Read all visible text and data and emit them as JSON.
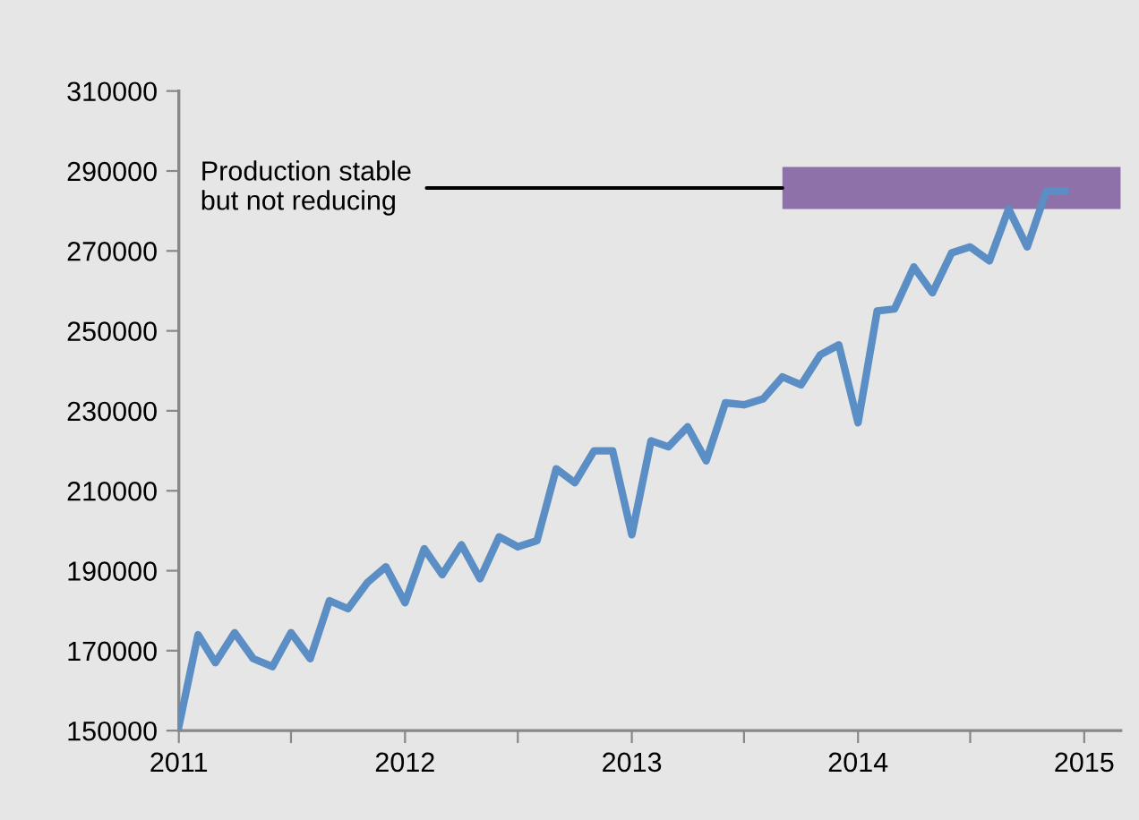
{
  "chart_data": {
    "type": "line",
    "x": [
      "2011-01",
      "2011-02",
      "2011-03",
      "2011-04",
      "2011-05",
      "2011-06",
      "2011-07",
      "2011-08",
      "2011-09",
      "2011-10",
      "2011-11",
      "2011-12",
      "2012-01",
      "2012-02",
      "2012-03",
      "2012-04",
      "2012-05",
      "2012-06",
      "2012-07",
      "2012-08",
      "2012-09",
      "2012-10",
      "2012-11",
      "2012-12",
      "2013-01",
      "2013-02",
      "2013-03",
      "2013-04",
      "2013-05",
      "2013-06",
      "2013-07",
      "2013-08",
      "2013-09",
      "2013-10",
      "2013-11",
      "2013-12",
      "2014-01",
      "2014-02",
      "2014-03",
      "2014-04",
      "2014-05",
      "2014-06",
      "2014-07",
      "2014-08",
      "2014-09",
      "2014-10",
      "2014-11",
      "2014-12"
    ],
    "series": [
      {
        "color": "#5b8ec4",
        "values": [
          151000,
          174000,
          167000,
          174500,
          168000,
          166000,
          174500,
          168000,
          182500,
          180500,
          187000,
          191000,
          182000,
          195500,
          189000,
          196500,
          188000,
          198500,
          196000,
          197500,
          215500,
          212000,
          220000,
          220000,
          199000,
          222500,
          221000,
          226000,
          217500,
          232000,
          231500,
          233000,
          238500,
          236500,
          244000,
          246500,
          227000,
          255000,
          255500,
          266000,
          259500,
          269500,
          271000,
          267500,
          280500,
          271000,
          285000,
          285000
        ]
      }
    ],
    "xlim": [
      "2011-01",
      "2015-03"
    ],
    "xticks": [
      {
        "value": "2011-01",
        "label": "2011"
      },
      {
        "value": "2011-07",
        "label": null
      },
      {
        "value": "2012-01",
        "label": "2012"
      },
      {
        "value": "2012-07",
        "label": null
      },
      {
        "value": "2013-01",
        "label": "2013"
      },
      {
        "value": "2013-07",
        "label": null
      },
      {
        "value": "2014-01",
        "label": "2014"
      },
      {
        "value": "2014-07",
        "label": null
      },
      {
        "value": "2015-01",
        "label": "2015"
      }
    ],
    "ylim": [
      150000,
      310000
    ],
    "yticks": [
      150000,
      170000,
      190000,
      210000,
      230000,
      250000,
      270000,
      290000,
      310000
    ],
    "bands": [
      {
        "axis": "y",
        "from": 280500,
        "to": 291000,
        "color": "#8e71a9"
      }
    ],
    "annotations": [
      {
        "text": "Production stable\nbut not reducing",
        "x": "2013-09",
        "y": 285750
      }
    ],
    "grid": false,
    "marker": "none",
    "line_style": "solid"
  }
}
